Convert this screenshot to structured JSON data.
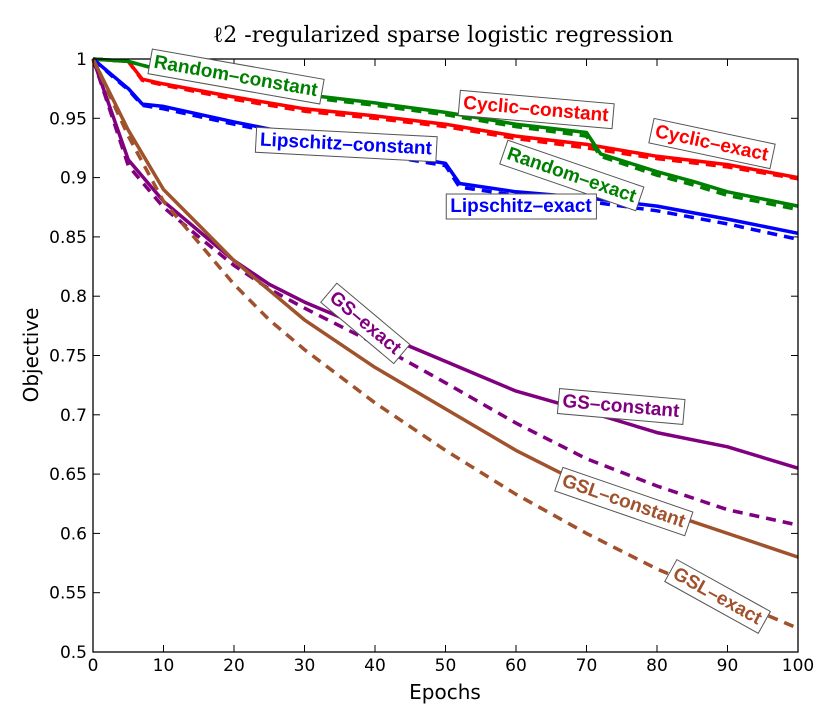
{
  "chart_data": {
    "type": "line",
    "title": "ℓ2 -regularized sparse logistic regression",
    "xlabel": "Epochs",
    "ylabel": "Objective",
    "xlim": [
      0,
      100
    ],
    "ylim": [
      0.5,
      1
    ],
    "xticks": [
      "0",
      "10",
      "20",
      "30",
      "40",
      "50",
      "60",
      "70",
      "80",
      "90",
      "100"
    ],
    "yticks": [
      "0.5",
      "0.55",
      "0.6",
      "0.65",
      "0.7",
      "0.75",
      "0.8",
      "0.85",
      "0.9",
      "0.95",
      "1"
    ],
    "grid": false,
    "legend": "inline labels",
    "series": [
      {
        "name": "Cyclic–constant",
        "color": "#ff0000",
        "style": "solid",
        "x": [
          0,
          5,
          7,
          10,
          20,
          30,
          40,
          50,
          60,
          70,
          80,
          90,
          100
        ],
        "y": [
          1.0,
          0.998,
          0.983,
          0.979,
          0.968,
          0.958,
          0.952,
          0.945,
          0.935,
          0.928,
          0.918,
          0.911,
          0.9
        ]
      },
      {
        "name": "Cyclic–exact",
        "color": "#ff0000",
        "style": "dashed",
        "x": [
          0,
          5,
          7,
          10,
          20,
          30,
          40,
          50,
          60,
          70,
          80,
          90,
          100
        ],
        "y": [
          1.0,
          0.998,
          0.982,
          0.978,
          0.966,
          0.956,
          0.95,
          0.943,
          0.933,
          0.925,
          0.916,
          0.909,
          0.899
        ]
      },
      {
        "name": "Random–constant",
        "color": "#008000",
        "style": "solid",
        "x": [
          0,
          5,
          10,
          20,
          30,
          40,
          50,
          60,
          70,
          72,
          80,
          85,
          90,
          100
        ],
        "y": [
          1.0,
          0.998,
          0.99,
          0.98,
          0.97,
          0.963,
          0.955,
          0.945,
          0.938,
          0.92,
          0.905,
          0.897,
          0.888,
          0.876
        ]
      },
      {
        "name": "Random–exact",
        "color": "#008000",
        "style": "dashed",
        "x": [
          0,
          5,
          10,
          20,
          30,
          40,
          50,
          60,
          70,
          72,
          80,
          85,
          90,
          100
        ],
        "y": [
          1.0,
          0.998,
          0.99,
          0.979,
          0.968,
          0.961,
          0.953,
          0.943,
          0.935,
          0.918,
          0.902,
          0.894,
          0.885,
          0.873
        ]
      },
      {
        "name": "Lipschitz–constant",
        "color": "#0000ff",
        "style": "solid",
        "x": [
          0,
          3,
          5,
          7,
          10,
          20,
          30,
          40,
          50,
          52,
          60,
          70,
          80,
          90,
          100
        ],
        "y": [
          1.0,
          0.985,
          0.975,
          0.962,
          0.96,
          0.947,
          0.935,
          0.922,
          0.912,
          0.895,
          0.888,
          0.883,
          0.876,
          0.865,
          0.853
        ]
      },
      {
        "name": "Lipschitz–exact",
        "color": "#0000ff",
        "style": "dashed",
        "x": [
          0,
          3,
          5,
          7,
          10,
          20,
          30,
          40,
          50,
          52,
          60,
          70,
          80,
          90,
          100
        ],
        "y": [
          1.0,
          0.984,
          0.974,
          0.961,
          0.958,
          0.945,
          0.933,
          0.92,
          0.91,
          0.892,
          0.885,
          0.88,
          0.872,
          0.861,
          0.848
        ]
      },
      {
        "name": "GS–constant",
        "color": "#800080",
        "style": "solid",
        "x": [
          0,
          5,
          10,
          15,
          20,
          25,
          30,
          40,
          50,
          60,
          70,
          80,
          90,
          100
        ],
        "y": [
          1.0,
          0.915,
          0.88,
          0.855,
          0.83,
          0.81,
          0.795,
          0.77,
          0.745,
          0.72,
          0.703,
          0.685,
          0.673,
          0.655
        ]
      },
      {
        "name": "GS–exact",
        "color": "#800080",
        "style": "dashed",
        "x": [
          0,
          5,
          10,
          15,
          20,
          25,
          30,
          40,
          50,
          60,
          70,
          80,
          90,
          100
        ],
        "y": [
          1.0,
          0.91,
          0.875,
          0.85,
          0.826,
          0.806,
          0.79,
          0.76,
          0.727,
          0.693,
          0.663,
          0.64,
          0.62,
          0.607
        ]
      },
      {
        "name": "GSL–constant",
        "color": "#a0522d",
        "style": "solid",
        "x": [
          0,
          5,
          10,
          15,
          20,
          25,
          30,
          40,
          50,
          60,
          70,
          80,
          90,
          100
        ],
        "y": [
          1.0,
          0.94,
          0.89,
          0.86,
          0.83,
          0.805,
          0.78,
          0.74,
          0.705,
          0.67,
          0.64,
          0.62,
          0.6,
          0.58
        ]
      },
      {
        "name": "GSL–exact",
        "color": "#a0522d",
        "style": "dashed",
        "x": [
          0,
          5,
          10,
          15,
          20,
          25,
          30,
          40,
          50,
          60,
          70,
          80,
          90,
          100
        ],
        "y": [
          1.0,
          0.935,
          0.88,
          0.845,
          0.81,
          0.78,
          0.755,
          0.71,
          0.67,
          0.633,
          0.6,
          0.57,
          0.545,
          0.52
        ]
      }
    ],
    "annotations": [
      {
        "text": "Random–constant",
        "series": 2
      },
      {
        "text": "Cyclic–constant",
        "series": 0
      },
      {
        "text": "Cyclic–exact",
        "series": 0
      },
      {
        "text": "Lipschitz–constant",
        "series": 4
      },
      {
        "text": "Random–exact",
        "series": 2
      },
      {
        "text": "Lipschitz–exact",
        "series": 4
      },
      {
        "text": "GS–exact",
        "series": 6
      },
      {
        "text": "GS–constant",
        "series": 6
      },
      {
        "text": "GSL–constant",
        "series": 8
      },
      {
        "text": "GSL–exact",
        "series": 8
      }
    ]
  }
}
